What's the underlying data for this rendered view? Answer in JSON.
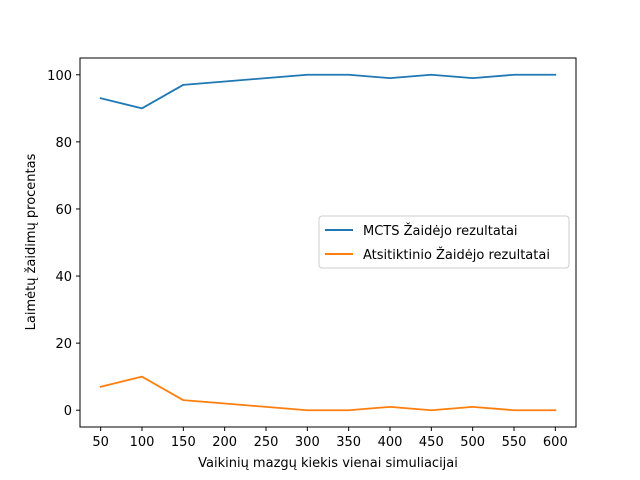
{
  "chart_data": {
    "type": "line",
    "title": "",
    "xlabel": "Vaikinių mazgų kiekis vienai simuliacijai",
    "ylabel": "Laimėtų žaidimų procentas",
    "x": [
      50,
      100,
      150,
      200,
      250,
      300,
      350,
      400,
      450,
      500,
      550,
      600
    ],
    "xticks": [
      "50",
      "100",
      "150",
      "200",
      "250",
      "300",
      "350",
      "400",
      "450",
      "500",
      "550",
      "600"
    ],
    "yticks": [
      "0",
      "20",
      "40",
      "60",
      "80",
      "100"
    ],
    "xlim": [
      25,
      625
    ],
    "ylim": [
      -5,
      105
    ],
    "grid": false,
    "legend_position": "center-right",
    "series": [
      {
        "name": "MCTS Žaidėjo rezultatai",
        "color": "#1f77b4",
        "values": [
          93,
          90,
          97,
          98,
          99,
          100,
          100,
          99,
          100,
          99,
          100,
          100
        ]
      },
      {
        "name": "Atsitiktinio Žaidėjo rezultatai",
        "color": "#ff7f0e",
        "values": [
          7,
          10,
          3,
          2,
          1,
          0,
          0,
          1,
          0,
          1,
          0,
          0
        ]
      }
    ]
  }
}
